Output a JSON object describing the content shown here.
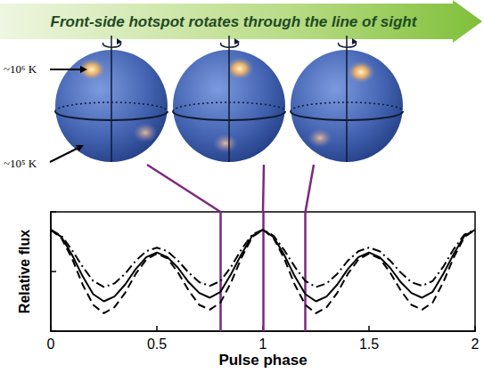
{
  "chart_data": {
    "type": "line",
    "title": "Front-side hotspot rotates through the line of sight",
    "x_label": "Pulse phase",
    "y_label": "Relative flux",
    "x": [
      0,
      0.05,
      0.1,
      0.15,
      0.2,
      0.25,
      0.3,
      0.35,
      0.4,
      0.45,
      0.5,
      0.55,
      0.6,
      0.65,
      0.7,
      0.75,
      0.8,
      0.85,
      0.9,
      0.95,
      1,
      1.05,
      1.1,
      1.15,
      1.2,
      1.25,
      1.3,
      1.35,
      1.4,
      1.45,
      1.5,
      1.55,
      1.6,
      1.65,
      1.7,
      1.75,
      1.8,
      1.85,
      1.9,
      1.95,
      2
    ],
    "series": [
      {
        "line_style": "solid",
        "color": "#000000",
        "values": [
          0.85,
          0.79,
          0.64,
          0.46,
          0.31,
          0.25,
          0.29,
          0.39,
          0.52,
          0.62,
          0.66,
          0.62,
          0.53,
          0.41,
          0.32,
          0.28,
          0.33,
          0.48,
          0.65,
          0.8,
          0.85,
          0.79,
          0.64,
          0.46,
          0.31,
          0.25,
          0.29,
          0.39,
          0.52,
          0.62,
          0.66,
          0.62,
          0.53,
          0.41,
          0.32,
          0.28,
          0.33,
          0.48,
          0.65,
          0.8,
          0.85
        ]
      },
      {
        "line_style": "dashed",
        "color": "#000000",
        "values": [
          0.85,
          0.78,
          0.61,
          0.39,
          0.22,
          0.15,
          0.2,
          0.32,
          0.48,
          0.6,
          0.65,
          0.61,
          0.49,
          0.34,
          0.22,
          0.18,
          0.24,
          0.41,
          0.62,
          0.79,
          0.85,
          0.78,
          0.61,
          0.39,
          0.22,
          0.15,
          0.2,
          0.32,
          0.48,
          0.6,
          0.65,
          0.61,
          0.49,
          0.34,
          0.22,
          0.18,
          0.24,
          0.41,
          0.62,
          0.79,
          0.85
        ]
      },
      {
        "line_style": "dashdot",
        "color": "#000000",
        "values": [
          0.85,
          0.8,
          0.68,
          0.54,
          0.42,
          0.37,
          0.4,
          0.48,
          0.59,
          0.67,
          0.7,
          0.67,
          0.59,
          0.49,
          0.41,
          0.38,
          0.42,
          0.54,
          0.69,
          0.81,
          0.85,
          0.8,
          0.68,
          0.54,
          0.42,
          0.37,
          0.4,
          0.48,
          0.59,
          0.67,
          0.7,
          0.67,
          0.59,
          0.49,
          0.41,
          0.38,
          0.42,
          0.54,
          0.69,
          0.81,
          0.85
        ]
      }
    ],
    "xlim": [
      0,
      2
    ],
    "xticks": [
      0,
      0.5,
      1,
      1.5,
      2
    ],
    "ylim": [
      0,
      1
    ],
    "yticks": [
      0,
      0.5,
      1
    ],
    "tick_labels": "x",
    "grid": false,
    "annotations": [
      "~10⁶ K",
      "~10⁵ K"
    ],
    "marked_phases": [
      0.8,
      1,
      1.2
    ]
  }
}
